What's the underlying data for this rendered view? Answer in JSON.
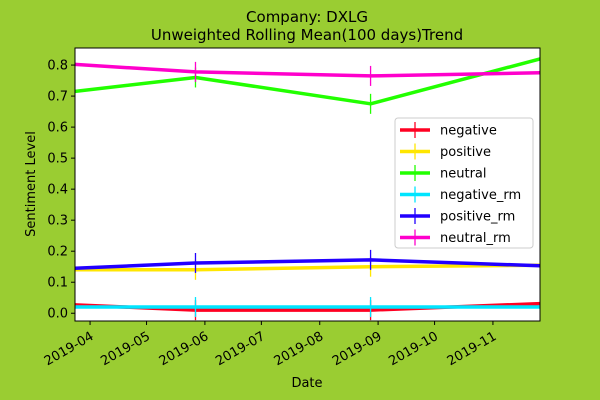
{
  "chart_data": {
    "type": "line",
    "title": "Company: DXLG",
    "subtitle": "Unweighted Rolling Mean(100 days)Trend",
    "xlabel": "Date",
    "ylabel": "Sentiment Level",
    "xlim": [
      "2019-03-24",
      "2019-11-26"
    ],
    "ylim": [
      -0.025,
      0.855
    ],
    "x_tick_labels": [
      "2019-04",
      "2019-05",
      "2019-06",
      "2019-07",
      "2019-08",
      "2019-09",
      "2019-10",
      "2019-11"
    ],
    "x_tick_dates": [
      "2019-04-01",
      "2019-05-01",
      "2019-06-01",
      "2019-07-01",
      "2019-08-01",
      "2019-09-01",
      "2019-10-01",
      "2019-11-01"
    ],
    "y_ticks": [
      0.0,
      0.1,
      0.2,
      0.3,
      0.4,
      0.5,
      0.6,
      0.7,
      0.8
    ],
    "y_tick_labels": [
      "0.0",
      "0.1",
      "0.2",
      "0.3",
      "0.4",
      "0.5",
      "0.6",
      "0.7",
      "0.8"
    ],
    "grid": false,
    "legend_position": "center-right",
    "x": [
      "2019-03-24",
      "2019-05-27",
      "2019-08-28",
      "2019-11-26"
    ],
    "series": [
      {
        "name": "negative",
        "color": "#ff0022",
        "values": [
          0.027,
          0.01,
          0.01,
          0.031
        ]
      },
      {
        "name": "positive",
        "color": "#ffe600",
        "values": [
          0.14,
          0.14,
          0.15,
          0.155
        ]
      },
      {
        "name": "neutral",
        "color": "#22ff00",
        "values": [
          0.715,
          0.76,
          0.675,
          0.82
        ]
      },
      {
        "name": "negative_rm",
        "color": "#00e5ff",
        "values": [
          0.02,
          0.02,
          0.02,
          0.02
        ]
      },
      {
        "name": "positive_rm",
        "color": "#2200ff",
        "values": [
          0.145,
          0.162,
          0.172,
          0.153
        ]
      },
      {
        "name": "neutral_rm",
        "color": "#ff00cc",
        "values": [
          0.802,
          0.778,
          0.765,
          0.775
        ]
      }
    ],
    "error_bar_x_indices": [
      1,
      2
    ]
  }
}
